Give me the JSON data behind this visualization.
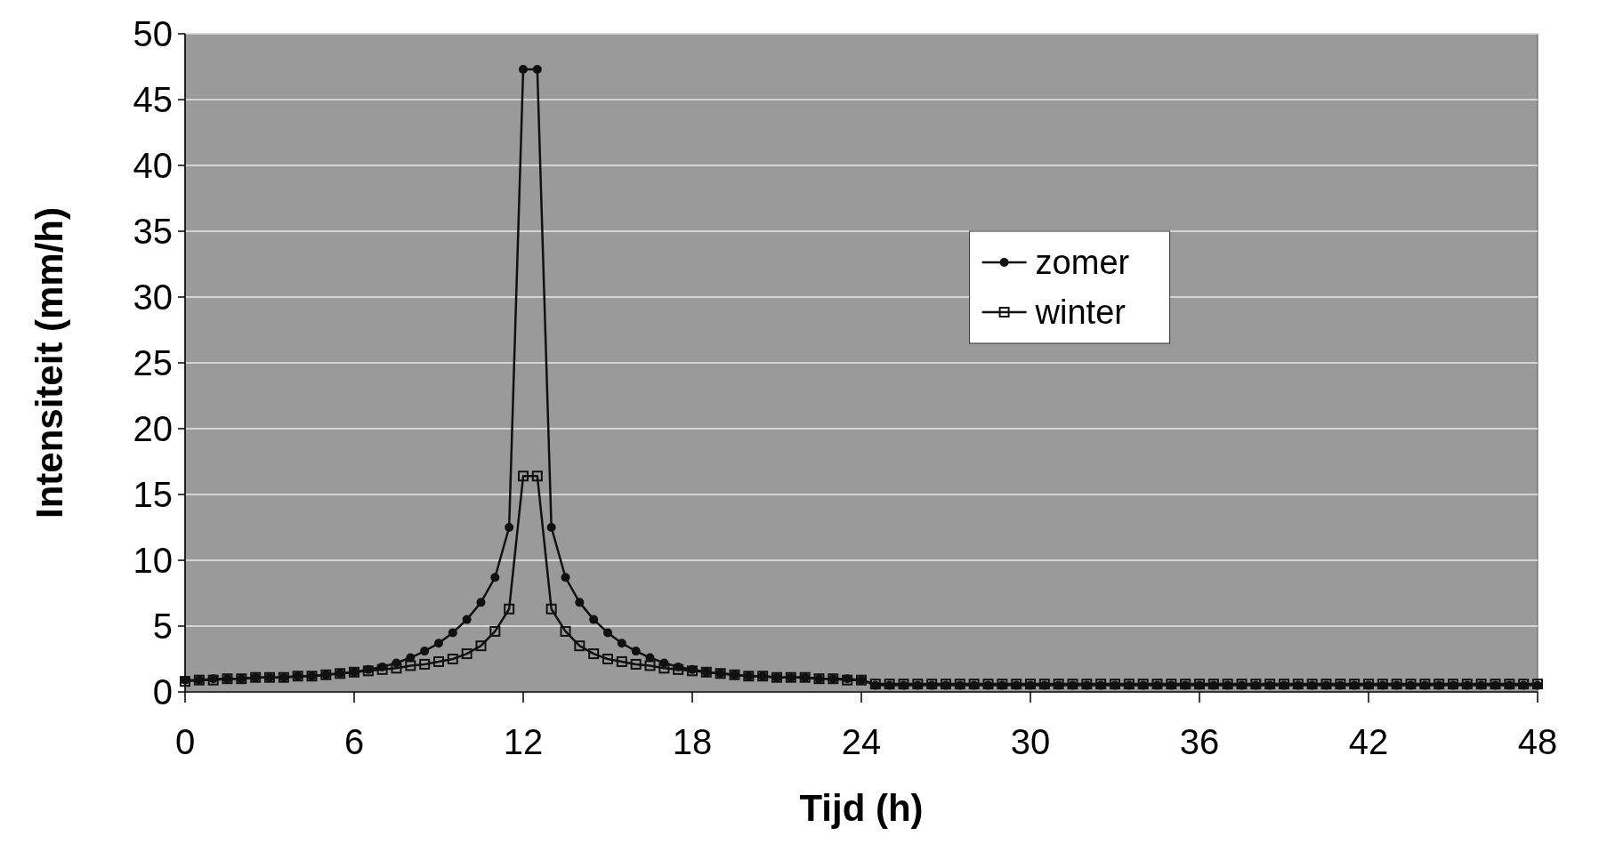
{
  "chart_data": {
    "type": "line",
    "xlabel": "Tijd (h)",
    "ylabel": "Intensiteit (mm/h)",
    "xlim": [
      0,
      48
    ],
    "xticks": [
      0,
      6,
      12,
      18,
      24,
      30,
      36,
      42,
      48
    ],
    "ylim": [
      0,
      50
    ],
    "yticks": [
      0,
      5,
      10,
      15,
      20,
      25,
      30,
      35,
      40,
      45,
      50
    ],
    "grid": "y",
    "legend": "top right",
    "line_style": "solid",
    "series": [
      {
        "name": "zomer",
        "color": "#111111",
        "marker": "circle",
        "values": [
          0.9,
          0.9,
          1.0,
          1.0,
          1.0,
          1.1,
          1.1,
          1.1,
          1.2,
          1.2,
          1.3,
          1.4,
          1.5,
          1.7,
          1.9,
          2.2,
          2.6,
          3.1,
          3.7,
          4.5,
          5.5,
          6.8,
          8.7,
          12.5,
          47.3,
          47.3,
          12.5,
          8.7,
          6.8,
          5.5,
          4.5,
          3.7,
          3.1,
          2.6,
          2.2,
          1.9,
          1.7,
          1.5,
          1.4,
          1.3,
          1.2,
          1.2,
          1.1,
          1.1,
          1.1,
          1.0,
          1.0,
          1.0,
          0.9,
          0.5,
          0.5,
          0.5,
          0.5,
          0.5,
          0.5,
          0.5,
          0.5,
          0.5,
          0.5,
          0.5,
          0.5,
          0.5,
          0.5,
          0.5,
          0.5,
          0.5,
          0.5,
          0.5,
          0.5,
          0.5,
          0.5,
          0.5,
          0.5,
          0.5,
          0.5,
          0.5,
          0.5,
          0.5,
          0.5,
          0.5,
          0.5,
          0.5,
          0.5,
          0.5,
          0.5,
          0.5,
          0.5,
          0.5,
          0.5,
          0.5,
          0.5,
          0.5,
          0.5,
          0.5,
          0.5,
          0.5,
          0.5
        ]
      },
      {
        "name": "winter",
        "color": "#111111",
        "marker": "square",
        "values": [
          0.8,
          0.9,
          0.9,
          1.0,
          1.0,
          1.1,
          1.1,
          1.1,
          1.2,
          1.2,
          1.3,
          1.4,
          1.5,
          1.6,
          1.7,
          1.8,
          2.0,
          2.1,
          2.3,
          2.5,
          2.9,
          3.5,
          4.6,
          6.3,
          16.4,
          16.4,
          6.3,
          4.6,
          3.5,
          2.9,
          2.5,
          2.3,
          2.1,
          2.0,
          1.8,
          1.7,
          1.6,
          1.5,
          1.4,
          1.3,
          1.2,
          1.2,
          1.1,
          1.1,
          1.1,
          1.0,
          1.0,
          0.9,
          0.9,
          0.6,
          0.6,
          0.6,
          0.6,
          0.6,
          0.6,
          0.6,
          0.6,
          0.6,
          0.6,
          0.6,
          0.6,
          0.6,
          0.6,
          0.6,
          0.6,
          0.6,
          0.6,
          0.6,
          0.6,
          0.6,
          0.6,
          0.6,
          0.6,
          0.6,
          0.6,
          0.6,
          0.6,
          0.6,
          0.6,
          0.6,
          0.6,
          0.6,
          0.6,
          0.6,
          0.6,
          0.6,
          0.6,
          0.6,
          0.6,
          0.6,
          0.6,
          0.6,
          0.6,
          0.6,
          0.6,
          0.6,
          0.6
        ]
      }
    ],
    "x": [
      0,
      0.5,
      1,
      1.5,
      2,
      2.5,
      3,
      3.5,
      4,
      4.5,
      5,
      5.5,
      6,
      6.5,
      7,
      7.5,
      8,
      8.5,
      9,
      9.5,
      10,
      10.5,
      11,
      11.5,
      12,
      12.5,
      13,
      13.5,
      14,
      14.5,
      15,
      15.5,
      16,
      16.5,
      17,
      17.5,
      18,
      18.5,
      19,
      19.5,
      20,
      20.5,
      21,
      21.5,
      22,
      22.5,
      23,
      23.5,
      24,
      24.5,
      25,
      25.5,
      26,
      26.5,
      27,
      27.5,
      28,
      28.5,
      29,
      29.5,
      30,
      30.5,
      31,
      31.5,
      32,
      32.5,
      33,
      33.5,
      34,
      34.5,
      35,
      35.5,
      36,
      36.5,
      37,
      37.5,
      38,
      38.5,
      39,
      39.5,
      40,
      40.5,
      41,
      41.5,
      42,
      42.5,
      43,
      43.5,
      44,
      44.5,
      45,
      45.5,
      46,
      46.5,
      47,
      47.5,
      48
    ]
  }
}
